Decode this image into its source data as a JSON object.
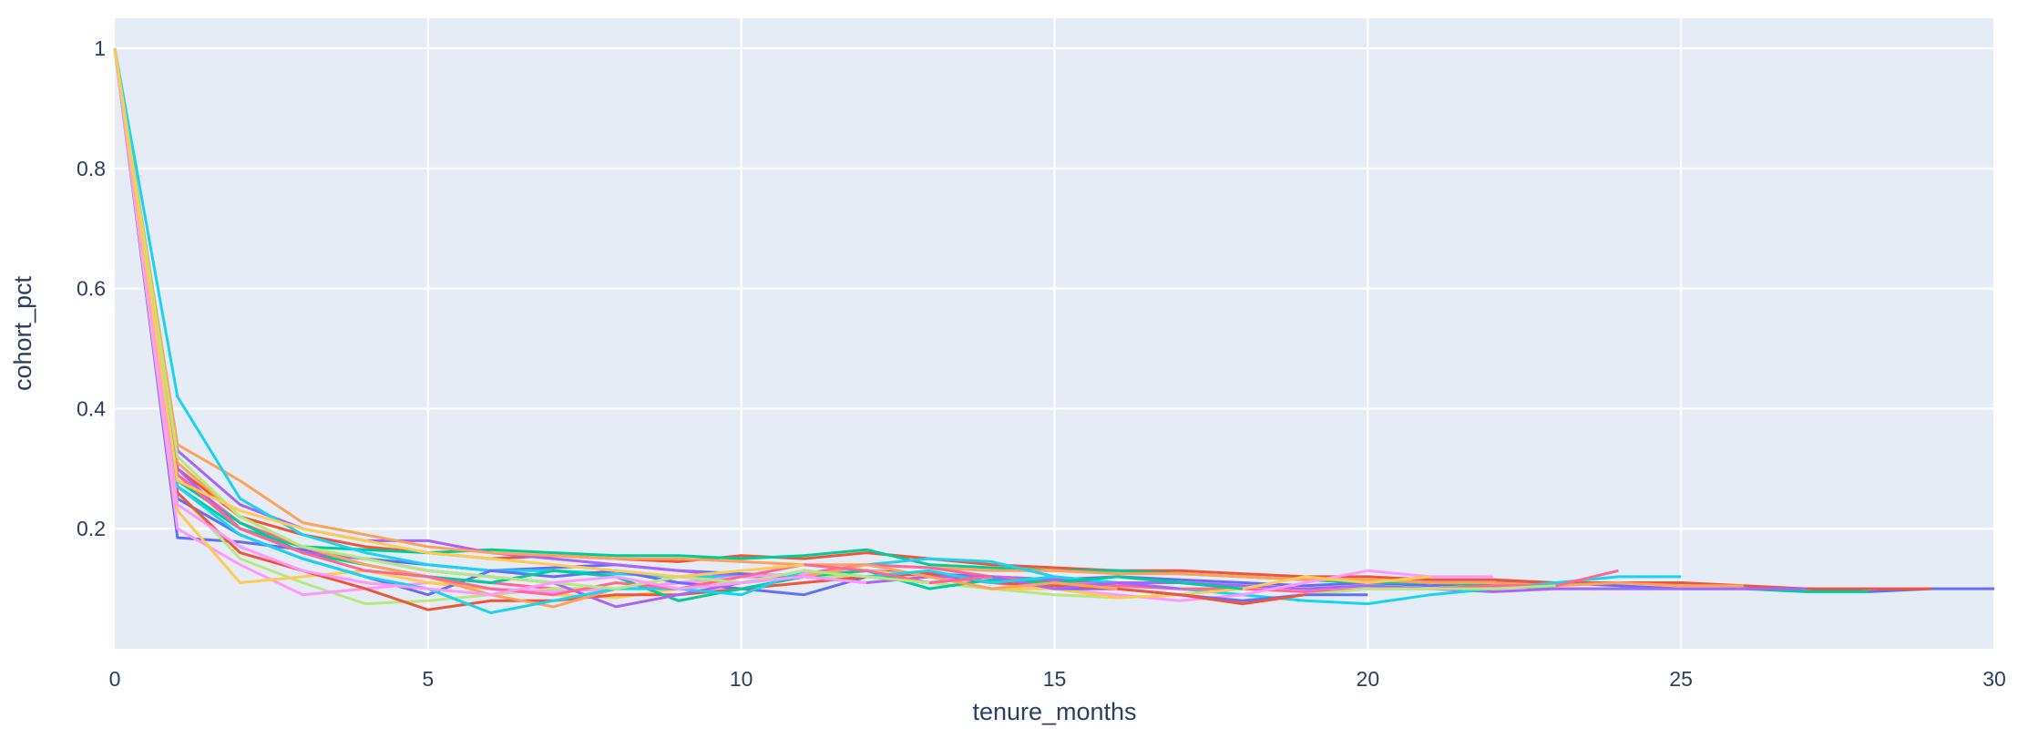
{
  "chart_data": {
    "type": "line",
    "title": "",
    "xlabel": "tenure_months",
    "ylabel": "cohort_pct",
    "xlim": [
      0,
      30
    ],
    "ylim": [
      0,
      1.05
    ],
    "x_ticks": [
      0,
      5,
      10,
      15,
      20,
      25,
      30
    ],
    "y_ticks": [
      0.2,
      0.4,
      0.6,
      0.8,
      1
    ],
    "grid": true,
    "legend": "none",
    "plot_background": "#e5ecf6",
    "grid_color": "#ffffff",
    "text_color": "#2a3f5f",
    "series": [
      {
        "color": "#636efa",
        "values": [
          1,
          0.185,
          0.178,
          0.165,
          0.15,
          0.14,
          0.13,
          0.135,
          0.14,
          0.13,
          0.125,
          0.12,
          0.13,
          0.125,
          0.12,
          0.115,
          0.12,
          0.115,
          0.11,
          0.105,
          0.11,
          0.105,
          0.11,
          0.11,
          0.105,
          0.1,
          0.1,
          0.1,
          0.095,
          0.1,
          0.1
        ]
      },
      {
        "color": "#ef553b",
        "values": [
          1,
          0.3,
          0.22,
          0.19,
          0.17,
          0.16,
          0.15,
          0.155,
          0.15,
          0.145,
          0.155,
          0.15,
          0.16,
          0.15,
          0.14,
          0.135,
          0.13,
          0.13,
          0.125,
          0.12,
          0.12,
          0.115,
          0.115,
          0.11,
          0.11,
          0.11,
          0.105,
          0.1,
          0.1,
          0.1
        ]
      },
      {
        "color": "#00cc96",
        "values": [
          1,
          0.27,
          0.2,
          0.17,
          0.165,
          0.16,
          0.165,
          0.16,
          0.155,
          0.155,
          0.15,
          0.155,
          0.165,
          0.14,
          0.135,
          0.13,
          0.13,
          0.125,
          0.12,
          0.115,
          0.11,
          0.11,
          0.105,
          0.1,
          0.1,
          0.1,
          0.1,
          0.095,
          0.095
        ]
      },
      {
        "color": "#ab63fa",
        "values": [
          1,
          0.33,
          0.24,
          0.2,
          0.18,
          0.18,
          0.16,
          0.15,
          0.14,
          0.13,
          0.12,
          0.12,
          0.13,
          0.12,
          0.12,
          0.115,
          0.11,
          0.11,
          0.105,
          0.1,
          0.105,
          0.1,
          0.095,
          0.1,
          0.1,
          0.1,
          0.1,
          0.1
        ]
      },
      {
        "color": "#ffa15a",
        "values": [
          1,
          0.34,
          0.28,
          0.21,
          0.19,
          0.17,
          0.16,
          0.155,
          0.15,
          0.15,
          0.145,
          0.14,
          0.14,
          0.135,
          0.13,
          0.13,
          0.125,
          0.125,
          0.12,
          0.115,
          0.115,
          0.11,
          0.11,
          0.105,
          0.11,
          0.105,
          0.105
        ]
      },
      {
        "color": "#19d3f3",
        "values": [
          1,
          0.42,
          0.25,
          0.19,
          0.16,
          0.14,
          0.13,
          0.13,
          0.125,
          0.12,
          0.12,
          0.125,
          0.14,
          0.15,
          0.145,
          0.12,
          0.11,
          0.1,
          0.09,
          0.08,
          0.075,
          0.09,
          0.1,
          0.11,
          0.12,
          0.12
        ]
      },
      {
        "color": "#ff6692",
        "values": [
          1,
          0.29,
          0.21,
          0.17,
          0.14,
          0.12,
          0.11,
          0.1,
          0.1,
          0.11,
          0.12,
          0.125,
          0.14,
          0.135,
          0.12,
          0.11,
          0.105,
          0.1,
          0.1,
          0.095,
          0.1,
          0.1,
          0.105,
          0.105,
          0.13
        ]
      },
      {
        "color": "#b6e880",
        "values": [
          1,
          0.26,
          0.15,
          0.11,
          0.075,
          0.08,
          0.09,
          0.1,
          0.1,
          0.11,
          0.11,
          0.12,
          0.12,
          0.11,
          0.1,
          0.09,
          0.085,
          0.09,
          0.075,
          0.09,
          0.1,
          0.1,
          0.1,
          0.105
        ]
      },
      {
        "color": "#ff97ff",
        "values": [
          1,
          0.2,
          0.14,
          0.09,
          0.1,
          0.11,
          0.1,
          0.095,
          0.1,
          0.11,
          0.12,
          0.125,
          0.13,
          0.12,
          0.11,
          0.1,
          0.09,
          0.08,
          0.09,
          0.11,
          0.13,
          0.12,
          0.12
        ]
      },
      {
        "color": "#fecb52",
        "values": [
          1,
          0.23,
          0.11,
          0.12,
          0.13,
          0.11,
          0.1,
          0.09,
          0.085,
          0.1,
          0.11,
          0.12,
          0.13,
          0.12,
          0.1,
          0.1,
          0.085,
          0.09,
          0.1,
          0.12,
          0.11,
          0.12
        ]
      },
      {
        "color": "#636efa",
        "values": [
          1,
          0.25,
          0.19,
          0.15,
          0.12,
          0.09,
          0.13,
          0.12,
          0.13,
          0.11,
          0.1,
          0.09,
          0.12,
          0.11,
          0.12,
          0.1,
          0.1,
          0.09,
          0.08,
          0.09,
          0.09
        ]
      },
      {
        "color": "#ef553b",
        "values": [
          1,
          0.26,
          0.16,
          0.13,
          0.1,
          0.065,
          0.08,
          0.08,
          0.09,
          0.09,
          0.1,
          0.11,
          0.12,
          0.125,
          0.11,
          0.105,
          0.1,
          0.09,
          0.075,
          0.09
        ]
      },
      {
        "color": "#00cc96",
        "values": [
          1,
          0.28,
          0.21,
          0.16,
          0.14,
          0.12,
          0.11,
          0.13,
          0.12,
          0.08,
          0.1,
          0.12,
          0.13,
          0.1,
          0.115,
          0.11,
          0.12,
          0.11,
          0.1
        ]
      },
      {
        "color": "#ab63fa",
        "values": [
          1,
          0.3,
          0.2,
          0.16,
          0.15,
          0.13,
          0.12,
          0.11,
          0.07,
          0.09,
          0.11,
          0.12,
          0.11,
          0.12,
          0.12,
          0.1,
          0.11,
          0.1
        ]
      },
      {
        "color": "#ffa15a",
        "values": [
          1,
          0.31,
          0.22,
          0.17,
          0.14,
          0.12,
          0.09,
          0.07,
          0.1,
          0.12,
          0.11,
          0.12,
          0.14,
          0.12,
          0.1,
          0.11,
          0.1
        ]
      },
      {
        "color": "#19d3f3",
        "values": [
          1,
          0.27,
          0.19,
          0.15,
          0.12,
          0.1,
          0.06,
          0.08,
          0.1,
          0.1,
          0.09,
          0.13,
          0.12,
          0.13,
          0.11,
          0.12
        ]
      },
      {
        "color": "#ff6692",
        "values": [
          1,
          0.29,
          0.2,
          0.16,
          0.13,
          0.12,
          0.1,
          0.09,
          0.11,
          0.1,
          0.12,
          0.14,
          0.13,
          0.11,
          0.12
        ]
      },
      {
        "color": "#b6e880",
        "values": [
          1,
          0.32,
          0.22,
          0.17,
          0.15,
          0.13,
          0.12,
          0.11,
          0.1,
          0.12,
          0.11,
          0.13,
          0.12,
          0.11
        ]
      },
      {
        "color": "#ff97ff",
        "values": [
          1,
          0.24,
          0.17,
          0.13,
          0.11,
          0.1,
          0.09,
          0.11,
          0.12,
          0.1,
          0.11,
          0.12,
          0.11
        ]
      },
      {
        "color": "#fecb52",
        "values": [
          1,
          0.28,
          0.23,
          0.2,
          0.18,
          0.16,
          0.15,
          0.14,
          0.13,
          0.12,
          0.13,
          0.14
        ]
      }
    ]
  }
}
